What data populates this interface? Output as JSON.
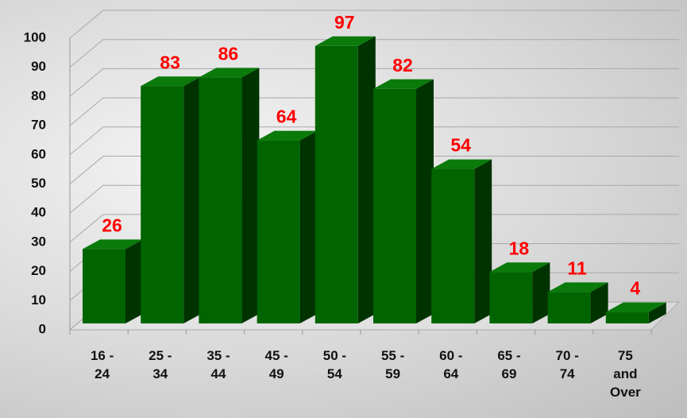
{
  "chart_data": {
    "type": "bar3d",
    "categories": [
      "16 - 24",
      "25 - 34",
      "35 - 44",
      "45 - 49",
      "50 - 54",
      "55 - 59",
      "60 - 64",
      "65 - 69",
      "70 - 74",
      "75 and Over"
    ],
    "values": [
      26,
      83,
      86,
      64,
      97,
      82,
      54,
      18,
      11,
      4
    ],
    "color": "#006400",
    "label_color": "#ff0000",
    "ylim": [
      0,
      100
    ],
    "yticks": [
      0,
      10,
      20,
      30,
      40,
      50,
      60,
      70,
      80,
      90,
      100
    ],
    "grid": true
  }
}
